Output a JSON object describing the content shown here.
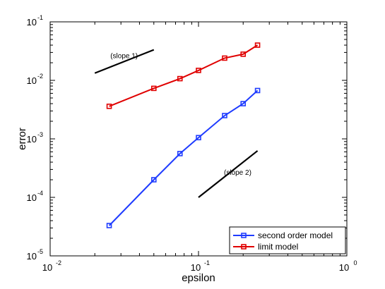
{
  "chart_data": {
    "type": "line",
    "xscale": "log",
    "yscale": "log",
    "xlim": [
      0.01,
      1
    ],
    "ylim": [
      1e-05,
      0.1
    ],
    "xlabel": "epsilon",
    "ylabel": "error",
    "grid": false,
    "legend_position": "bottom-right",
    "x_ticks": [
      {
        "value": 0.01,
        "base": "10",
        "exp": "-2"
      },
      {
        "value": 0.1,
        "base": "10",
        "exp": "-1"
      },
      {
        "value": 1,
        "base": "10",
        "exp": "0"
      }
    ],
    "y_ticks": [
      {
        "value": 1e-05,
        "base": "10",
        "exp": "-5"
      },
      {
        "value": 0.0001,
        "base": "10",
        "exp": "-4"
      },
      {
        "value": 0.001,
        "base": "10",
        "exp": "-3"
      },
      {
        "value": 0.01,
        "base": "10",
        "exp": "-2"
      },
      {
        "value": 0.1,
        "base": "10",
        "exp": "-1"
      }
    ],
    "series": [
      {
        "name": "second order model",
        "color": "#1f3cff",
        "marker": "square",
        "x": [
          0.025,
          0.05,
          0.075,
          0.1,
          0.15,
          0.2,
          0.25
        ],
        "y": [
          3.3e-05,
          0.0002,
          0.00056,
          0.00105,
          0.0025,
          0.004,
          0.0067
        ]
      },
      {
        "name": "limit model",
        "color": "#e00000",
        "marker": "square",
        "x": [
          0.025,
          0.05,
          0.075,
          0.1,
          0.15,
          0.2,
          0.25
        ],
        "y": [
          0.0036,
          0.0073,
          0.0107,
          0.0148,
          0.024,
          0.028,
          0.04
        ]
      }
    ],
    "reference_lines": [
      {
        "label": "(slope 1)",
        "color": "#000000",
        "x": [
          0.02,
          0.05
        ],
        "y": [
          0.0133,
          0.0333
        ]
      },
      {
        "label": "(slope 2)",
        "color": "#000000",
        "x": [
          0.1,
          0.25
        ],
        "y": [
          0.0001,
          0.000625
        ]
      }
    ]
  }
}
